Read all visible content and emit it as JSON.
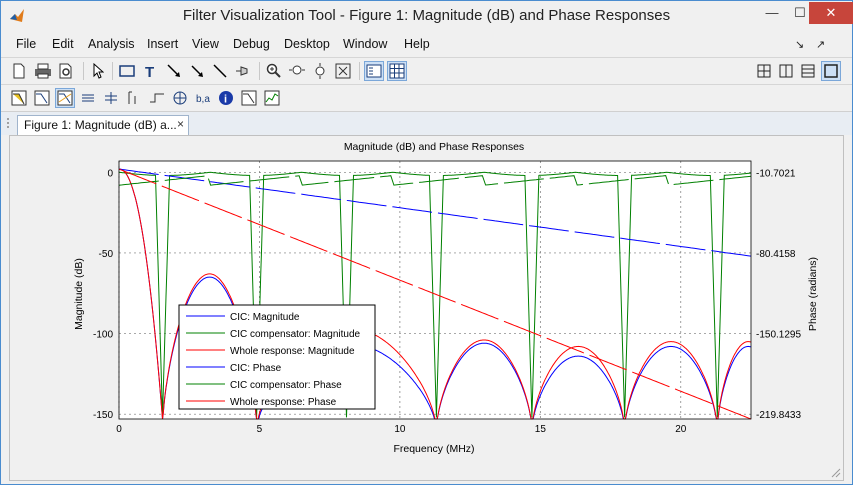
{
  "window": {
    "title": "Filter Visualization Tool - Figure 1: Magnitude (dB) and Phase Responses",
    "min_label": "—",
    "max_label": "☐",
    "close_label": "✕"
  },
  "menu": {
    "items": [
      "File",
      "Edit",
      "Analysis",
      "Insert",
      "View",
      "Debug",
      "Desktop",
      "Window",
      "Help"
    ],
    "right": [
      "↘",
      "↗"
    ]
  },
  "tab": {
    "label": "Figure 1: Magnitude (dB) a...",
    "close": "×"
  },
  "colors": {
    "cic": "#0000ff",
    "comp": "#008000",
    "whole": "#ff0000"
  },
  "chart_data": {
    "type": "line",
    "title": "Magnitude (dB) and Phase Responses",
    "xlabel": "Frequency (MHz)",
    "ylabel": "Magnitude (dB)",
    "ylabel_right": "Phase (radians)",
    "xlim": [
      0,
      22.5
    ],
    "ylim": [
      -153,
      7
    ],
    "xticks": [
      "0",
      "5",
      "10",
      "15",
      "20"
    ],
    "yticks": [
      "0",
      "-50",
      "-100",
      "-150"
    ],
    "yticks_right": [
      "-10.7021",
      "-80.4158",
      "-150.1295",
      "-219.8433"
    ],
    "grid": true,
    "legend_position": "bottom-left",
    "series": [
      {
        "name": "CIC: Magnitude",
        "kind": "magnitude",
        "color": "#0000ff",
        "nulls_mhz": [
          1.55,
          4.9,
          11.3,
          14.7,
          18.0,
          21.3
        ],
        "lobe_peaks_db": [
          -65,
          -106,
          -106,
          -114,
          -108
        ]
      },
      {
        "name": "CIC compensator: Magnitude",
        "kind": "magnitude",
        "color": "#008000",
        "passband_db": 0,
        "nulls_mhz": [
          1.55,
          4.9,
          8.1,
          11.3,
          14.7,
          18.0,
          21.3
        ]
      },
      {
        "name": "Whole response: Magnitude",
        "kind": "magnitude",
        "color": "#ff0000",
        "nulls_mhz": [
          1.55,
          4.9,
          11.3,
          14.7,
          18.0,
          21.3
        ],
        "lobe_peaks_db": [
          -63,
          -96,
          -104,
          -108,
          -105
        ]
      },
      {
        "name": "CIC: Phase",
        "kind": "phase",
        "color": "#0000ff",
        "x": [
          0,
          22.5
        ],
        "y_db_scale": [
          2,
          -52
        ]
      },
      {
        "name": "CIC compensator: Phase",
        "kind": "phase",
        "color": "#008000",
        "x": [
          0,
          22.5
        ],
        "y_db_scale": [
          -1,
          0
        ]
      },
      {
        "name": "Whole response: Phase",
        "kind": "phase",
        "color": "#ff0000",
        "x": [
          0,
          22.5
        ],
        "y_db_scale": [
          2,
          -153
        ]
      }
    ]
  }
}
